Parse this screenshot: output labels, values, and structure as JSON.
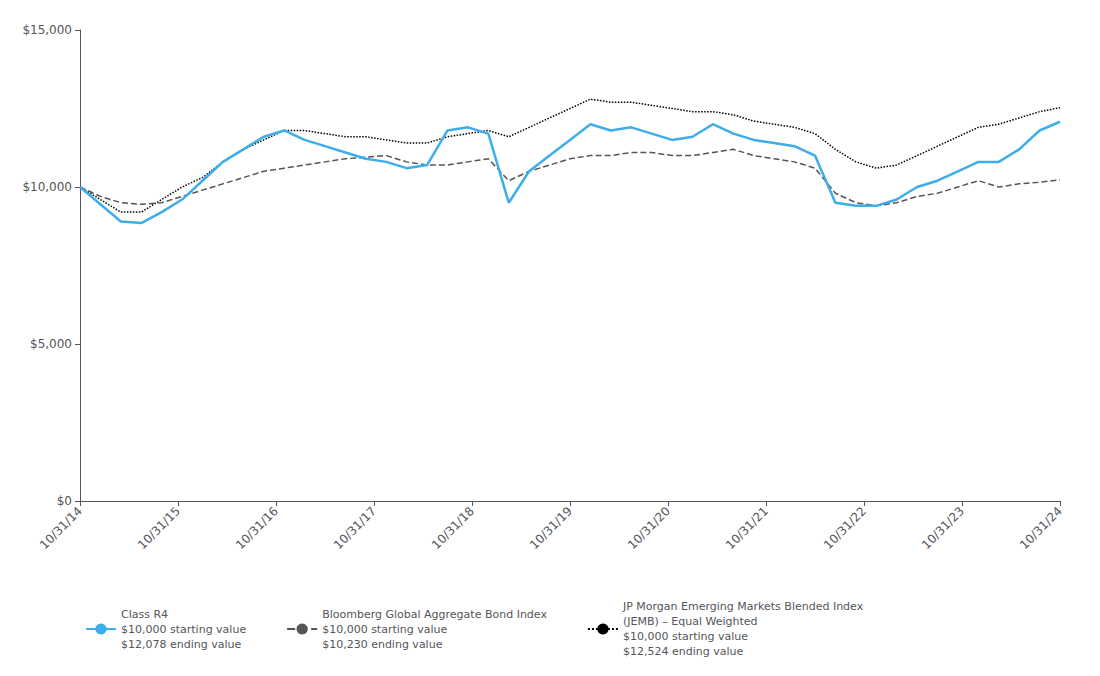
{
  "chart_data": {
    "type": "line",
    "x": [
      0,
      1,
      2,
      3,
      4,
      5,
      6,
      7,
      8,
      9,
      10,
      11,
      12,
      13,
      14,
      15,
      16,
      17,
      18,
      19,
      20,
      21,
      22,
      23,
      24,
      25,
      26,
      27,
      28,
      29,
      30,
      31,
      32,
      33,
      34,
      35,
      36,
      37,
      38,
      39,
      40,
      41,
      42,
      43,
      44,
      45,
      46,
      47,
      48
    ],
    "xlim": [
      0,
      48
    ],
    "xticks": [
      {
        "value": 0,
        "label": "10/31/14"
      },
      {
        "value": 4.8,
        "label": "10/31/15"
      },
      {
        "value": 9.6,
        "label": "10/31/16"
      },
      {
        "value": 14.4,
        "label": "10/31/17"
      },
      {
        "value": 19.2,
        "label": "10/31/18"
      },
      {
        "value": 24,
        "label": "10/31/19"
      },
      {
        "value": 28.8,
        "label": "10/31/20"
      },
      {
        "value": 33.6,
        "label": "10/31/21"
      },
      {
        "value": 38.4,
        "label": "10/31/22"
      },
      {
        "value": 43.2,
        "label": "10/31/23"
      },
      {
        "value": 48,
        "label": "10/31/24"
      }
    ],
    "ylim": [
      0,
      15000
    ],
    "yticks": [
      {
        "value": 0,
        "label": "$0"
      },
      {
        "value": 5000,
        "label": "$5,000"
      },
      {
        "value": 10000,
        "label": "$10,000"
      },
      {
        "value": 15000,
        "label": "$15,000"
      }
    ],
    "grid": false,
    "legend": "bottom",
    "series": [
      {
        "name": "Class R4\n$10,000 starting value\n$12,078 ending value",
        "color": "#3daee9",
        "line_style": "solid",
        "values": [
          10000,
          9450,
          8900,
          8850,
          9200,
          9600,
          10200,
          10800,
          11200,
          11600,
          11800,
          11500,
          11300,
          11100,
          10900,
          10800,
          10600,
          10700,
          11800,
          11900,
          11700,
          9500,
          10500,
          11000,
          11500,
          12000,
          11800,
          11900,
          11700,
          11500,
          11600,
          12000,
          11700,
          11500,
          11400,
          11300,
          11000,
          9500,
          9400,
          9400,
          9600,
          10000,
          10200,
          10500,
          10800,
          10800,
          11200,
          11800,
          12078
        ]
      },
      {
        "name": "Bloomberg Global Aggregate Bond Index\n$10,000 starting value\n$10,230 ending value",
        "color": "#555555",
        "line_style": "dashed",
        "values": [
          10000,
          9700,
          9500,
          9450,
          9500,
          9700,
          9900,
          10100,
          10300,
          10500,
          10600,
          10700,
          10800,
          10900,
          10950,
          11000,
          10800,
          10700,
          10700,
          10800,
          10900,
          10200,
          10500,
          10700,
          10900,
          11000,
          11000,
          11100,
          11100,
          11000,
          11000,
          11100,
          11200,
          11000,
          10900,
          10800,
          10600,
          9800,
          9500,
          9400,
          9500,
          9700,
          9800,
          10000,
          10200,
          10000,
          10100,
          10150,
          10230
        ]
      },
      {
        "name": "JP Morgan Emerging Markets Blended Index\n(JEMB) – Equal Weighted\n$10,000 starting value\n$12,524 ending value",
        "color": "#000000",
        "line_style": "dotted",
        "values": [
          10000,
          9600,
          9200,
          9200,
          9600,
          10000,
          10300,
          10800,
          11200,
          11500,
          11800,
          11800,
          11700,
          11600,
          11600,
          11500,
          11400,
          11400,
          11600,
          11700,
          11800,
          11600,
          11900,
          12200,
          12500,
          12800,
          12700,
          12700,
          12600,
          12500,
          12400,
          12400,
          12300,
          12100,
          12000,
          11900,
          11700,
          11200,
          10800,
          10600,
          10700,
          11000,
          11300,
          11600,
          11900,
          12000,
          12200,
          12400,
          12524
        ]
      }
    ]
  }
}
